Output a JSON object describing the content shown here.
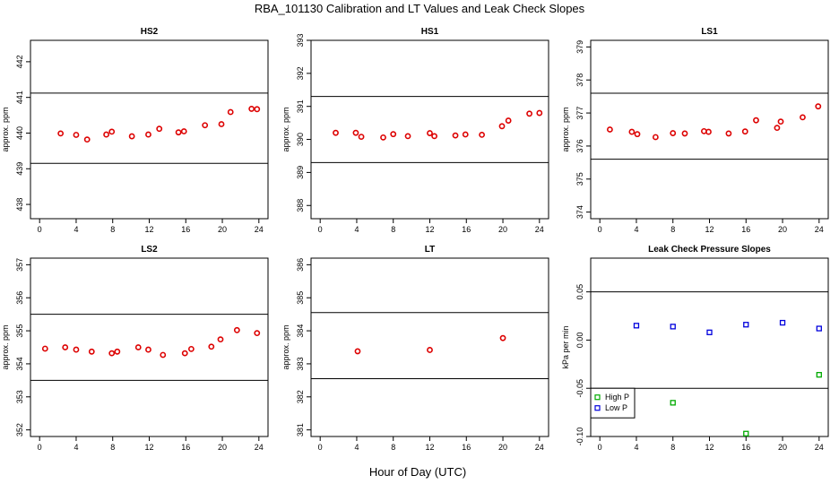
{
  "figure": {
    "title": "RBA_101130  Calibration and LT Values and Leak Check Slopes",
    "xlabel": "Hour of Day (UTC)"
  },
  "chart_data": [
    {
      "type": "scatter",
      "title": "HS2",
      "ylabel": "approx. ppm",
      "xlim": [
        -1,
        25
      ],
      "ylim": [
        437.6,
        442.6
      ],
      "xticks": [
        0,
        4,
        8,
        12,
        16,
        20,
        24
      ],
      "yticks": [
        438,
        439,
        440,
        441,
        442
      ],
      "hlines": [
        441.12,
        439.15
      ],
      "series": [
        {
          "color": "#dd0000",
          "marker": "circle",
          "points": [
            [
              2.3,
              439.99
            ],
            [
              4.0,
              439.95
            ],
            [
              5.2,
              439.82
            ],
            [
              7.3,
              439.96
            ],
            [
              7.9,
              440.04
            ],
            [
              10.1,
              439.91
            ],
            [
              11.9,
              439.96
            ],
            [
              13.1,
              440.12
            ],
            [
              15.2,
              440.02
            ],
            [
              15.8,
              440.05
            ],
            [
              18.1,
              440.22
            ],
            [
              19.9,
              440.25
            ],
            [
              20.9,
              440.59
            ],
            [
              23.2,
              440.68
            ],
            [
              23.8,
              440.67
            ]
          ]
        }
      ]
    },
    {
      "type": "scatter",
      "title": "HS1",
      "ylabel": "approx. ppm",
      "xlim": [
        -1,
        25
      ],
      "ylim": [
        387.6,
        393.0
      ],
      "xticks": [
        0,
        4,
        8,
        12,
        16,
        20,
        24
      ],
      "yticks": [
        388,
        389,
        390,
        391,
        392,
        393
      ],
      "hlines": [
        391.3,
        389.3
      ],
      "series": [
        {
          "color": "#dd0000",
          "marker": "circle",
          "points": [
            [
              1.7,
              390.2
            ],
            [
              3.9,
              390.2
            ],
            [
              4.5,
              390.08
            ],
            [
              6.9,
              390.06
            ],
            [
              8.0,
              390.16
            ],
            [
              9.6,
              390.1
            ],
            [
              12.0,
              390.19
            ],
            [
              12.5,
              390.1
            ],
            [
              14.8,
              390.12
            ],
            [
              15.9,
              390.15
            ],
            [
              17.7,
              390.14
            ],
            [
              19.9,
              390.4
            ],
            [
              20.6,
              390.57
            ],
            [
              22.9,
              390.78
            ],
            [
              24.0,
              390.8
            ]
          ]
        }
      ]
    },
    {
      "type": "scatter",
      "title": "LS1",
      "ylabel": "approx. ppm",
      "xlim": [
        -1,
        25
      ],
      "ylim": [
        373.8,
        379.2
      ],
      "xticks": [
        0,
        4,
        8,
        12,
        16,
        20,
        24
      ],
      "yticks": [
        374,
        375,
        376,
        377,
        378,
        379
      ],
      "hlines": [
        377.6,
        375.6
      ],
      "series": [
        {
          "color": "#dd0000",
          "marker": "circle",
          "points": [
            [
              1.1,
              376.5
            ],
            [
              3.5,
              376.43
            ],
            [
              4.1,
              376.36
            ],
            [
              6.1,
              376.27
            ],
            [
              8.0,
              376.39
            ],
            [
              9.3,
              376.38
            ],
            [
              11.4,
              376.45
            ],
            [
              11.9,
              376.43
            ],
            [
              14.1,
              376.38
            ],
            [
              15.9,
              376.44
            ],
            [
              17.1,
              376.78
            ],
            [
              19.4,
              376.55
            ],
            [
              19.8,
              376.74
            ],
            [
              22.2,
              376.87
            ],
            [
              23.9,
              377.2
            ]
          ]
        }
      ]
    },
    {
      "type": "scatter",
      "title": "LS2",
      "ylabel": "approx. ppm",
      "xlim": [
        -1,
        25
      ],
      "ylim": [
        351.8,
        357.2
      ],
      "xticks": [
        0,
        4,
        8,
        12,
        16,
        20,
        24
      ],
      "yticks": [
        352,
        353,
        354,
        355,
        356,
        357
      ],
      "hlines": [
        355.5,
        353.5
      ],
      "series": [
        {
          "color": "#dd0000",
          "marker": "circle",
          "points": [
            [
              0.6,
              354.46
            ],
            [
              2.8,
              354.5
            ],
            [
              4.0,
              354.43
            ],
            [
              5.7,
              354.37
            ],
            [
              7.9,
              354.32
            ],
            [
              8.5,
              354.37
            ],
            [
              10.8,
              354.5
            ],
            [
              11.9,
              354.43
            ],
            [
              13.5,
              354.27
            ],
            [
              15.9,
              354.32
            ],
            [
              16.6,
              354.45
            ],
            [
              18.8,
              354.52
            ],
            [
              19.8,
              354.74
            ],
            [
              21.6,
              355.02
            ],
            [
              23.8,
              354.93
            ]
          ]
        }
      ]
    },
    {
      "type": "scatter",
      "title": "LT",
      "ylabel": "approx. ppm",
      "xlim": [
        -1,
        25
      ],
      "ylim": [
        380.8,
        386.2
      ],
      "xticks": [
        0,
        4,
        8,
        12,
        16,
        20,
        24
      ],
      "yticks": [
        381,
        382,
        383,
        384,
        385,
        386
      ],
      "hlines": [
        384.55,
        382.55
      ],
      "series": [
        {
          "color": "#dd0000",
          "marker": "circle",
          "points": [
            [
              4.1,
              383.38
            ],
            [
              12.0,
              383.42
            ],
            [
              20.0,
              383.78
            ]
          ]
        }
      ]
    },
    {
      "type": "scatter",
      "title": "Leak Check Pressure Slopes",
      "ylabel": "kPa per min",
      "xlim": [
        -1,
        25
      ],
      "ylim": [
        -0.1,
        0.085
      ],
      "xticks": [
        0,
        4,
        8,
        12,
        16,
        20,
        24
      ],
      "yticks": [
        -0.1,
        -0.05,
        0.0,
        0.05
      ],
      "ytick_labels": [
        "-0.10",
        "-0.05",
        "0.00",
        "0.05"
      ],
      "hlines": [
        0.05,
        -0.05
      ],
      "legend": {
        "position": "bottom-left",
        "items": [
          "High P",
          "Low P"
        ]
      },
      "series": [
        {
          "name": "High P",
          "color": "#00aa00",
          "marker": "square",
          "points": [
            [
              8.0,
              -0.065
            ],
            [
              16.0,
              -0.097
            ],
            [
              24.0,
              -0.036
            ]
          ]
        },
        {
          "name": "Low P",
          "color": "#0000dd",
          "marker": "square",
          "points": [
            [
              4.0,
              0.015
            ],
            [
              8.0,
              0.014
            ],
            [
              12.0,
              0.008
            ],
            [
              16.0,
              0.016
            ],
            [
              20.0,
              0.018
            ],
            [
              24.0,
              0.012
            ]
          ]
        }
      ]
    }
  ]
}
